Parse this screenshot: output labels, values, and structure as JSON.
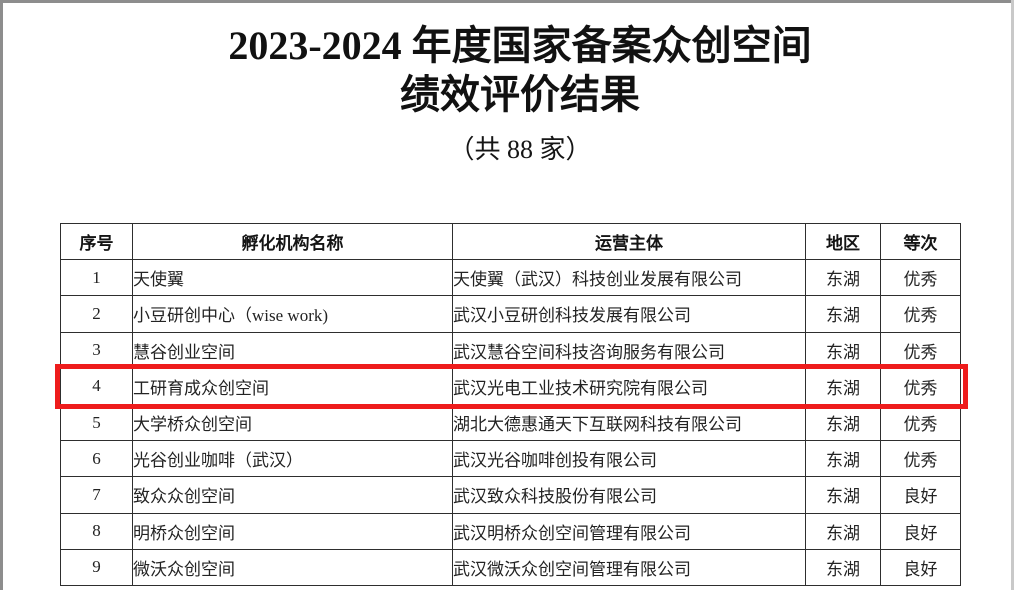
{
  "header": {
    "title_line1": "2023-2024 年度国家备案众创空间",
    "title_line2": "绩效评价结果",
    "subtitle": "（共 88 家）"
  },
  "table": {
    "columns": [
      "序号",
      "孵化机构名称",
      "运营主体",
      "地区",
      "等次"
    ],
    "rows": [
      {
        "no": "1",
        "name": "天使翼",
        "operator": "天使翼（武汉）科技创业发展有限公司",
        "region": "东湖",
        "grade": "优秀"
      },
      {
        "no": "2",
        "name": "小豆研创中心（wise work)",
        "operator": "武汉小豆研创科技发展有限公司",
        "region": "东湖",
        "grade": "优秀"
      },
      {
        "no": "3",
        "name": "慧谷创业空间",
        "operator": "武汉慧谷空间科技咨询服务有限公司",
        "region": "东湖",
        "grade": "优秀"
      },
      {
        "no": "4",
        "name": "工研育成众创空间",
        "operator": "武汉光电工业技术研究院有限公司",
        "region": "东湖",
        "grade": "优秀"
      },
      {
        "no": "5",
        "name": "大学桥众创空间",
        "operator": "湖北大德惠通天下互联网科技有限公司",
        "region": "东湖",
        "grade": "优秀"
      },
      {
        "no": "6",
        "name": "光谷创业咖啡（武汉）",
        "operator": "武汉光谷咖啡创投有限公司",
        "region": "东湖",
        "grade": "优秀"
      },
      {
        "no": "7",
        "name": "致众众创空间",
        "operator": "武汉致众科技股份有限公司",
        "region": "东湖",
        "grade": "良好"
      },
      {
        "no": "8",
        "name": "明桥众创空间",
        "operator": "武汉明桥众创空间管理有限公司",
        "region": "东湖",
        "grade": "良好"
      },
      {
        "no": "9",
        "name": "微沃众创空间",
        "operator": "武汉微沃众创空间管理有限公司",
        "region": "东湖",
        "grade": "良好"
      }
    ]
  },
  "highlight": {
    "row_no": "4",
    "color": "#ee1c1c"
  },
  "frame": {
    "edge_dark_color": "#8d8d8d",
    "edge_light_color": "#c9c9c9"
  }
}
